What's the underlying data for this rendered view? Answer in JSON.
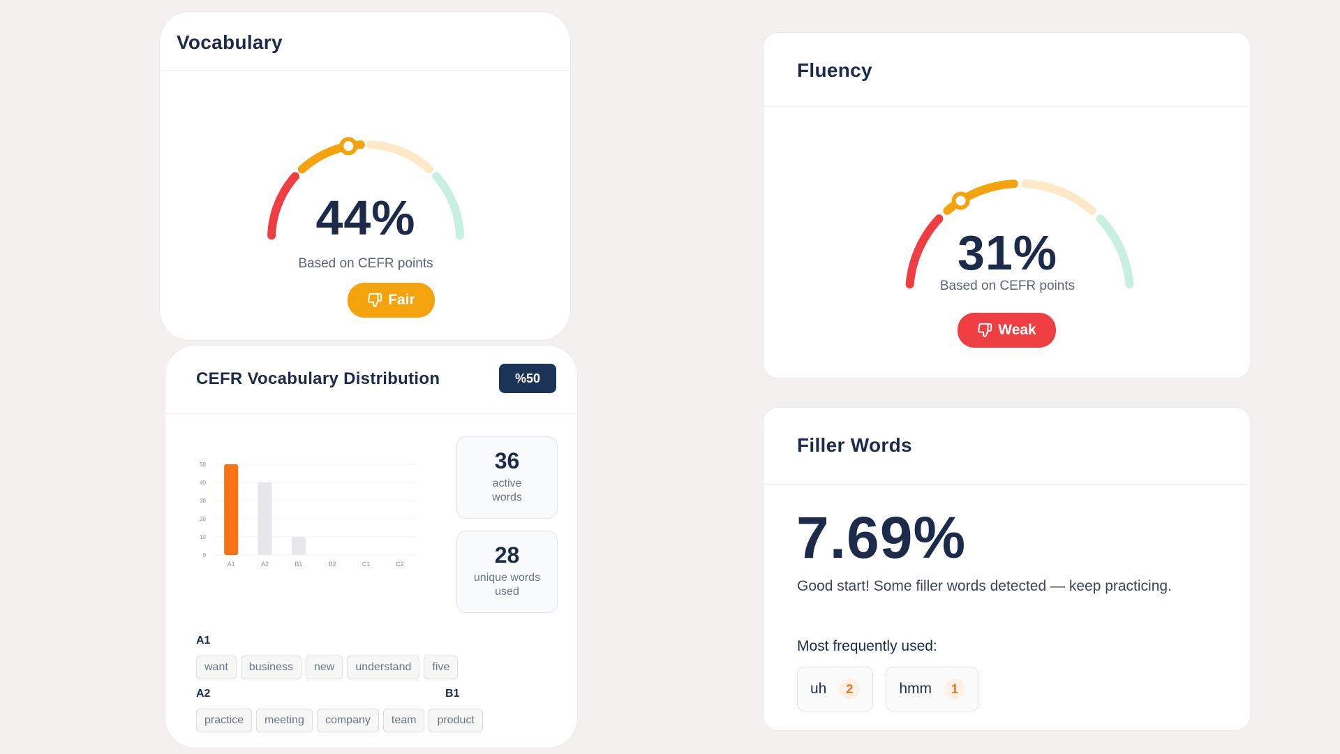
{
  "vocabulary": {
    "title": "Vocabulary",
    "score": "44%",
    "score_value": 44,
    "subtitle": "Based on CEFR points",
    "rating": "Fair",
    "rating_color": "#f5a30c"
  },
  "fluency": {
    "title": "Fluency",
    "score": "31%",
    "score_value": 31,
    "subtitle": "Based on CEFR points",
    "rating": "Weak",
    "rating_color": "#ef3e42"
  },
  "cefr": {
    "title": "CEFR Vocabulary Distribution",
    "badge": "%50",
    "active_count": "36",
    "active_label": "active words",
    "unique_count": "28",
    "unique_label": "unique words used",
    "levels": {
      "a1": {
        "label": "A1",
        "words": [
          "want",
          "business",
          "new",
          "understand",
          "five"
        ]
      },
      "a2": {
        "label": "A2",
        "words": [
          "practice",
          "meeting",
          "company",
          "team"
        ]
      },
      "b1": {
        "label": "B1",
        "words": [
          "product"
        ]
      }
    }
  },
  "chart_data": {
    "type": "bar",
    "categories": [
      "A1",
      "A2",
      "B1",
      "B2",
      "C1",
      "C2"
    ],
    "values": [
      50,
      40,
      10,
      0,
      0,
      0
    ],
    "yticks": [
      0,
      10,
      20,
      30,
      40,
      50
    ],
    "ylim": [
      0,
      50
    ],
    "highlight_color": "#f97316",
    "bar_color": "#e5e7eb"
  },
  "filler": {
    "title": "Filler Words",
    "percentage": "7.69%",
    "message": "Good start! Some filler words detected — keep practicing.",
    "most_frequent_label": "Most frequently used:",
    "words": [
      {
        "word": "uh",
        "count": "2"
      },
      {
        "word": "hmm",
        "count": "1"
      }
    ]
  },
  "icons": {
    "rating": "thumbs-down-icon"
  },
  "colors": {
    "red": "#ef3e42",
    "orange": "#f5a30c",
    "light_orange": "#fde9c6",
    "mint": "#c8f0e0",
    "navy": "#1c2b4a"
  }
}
